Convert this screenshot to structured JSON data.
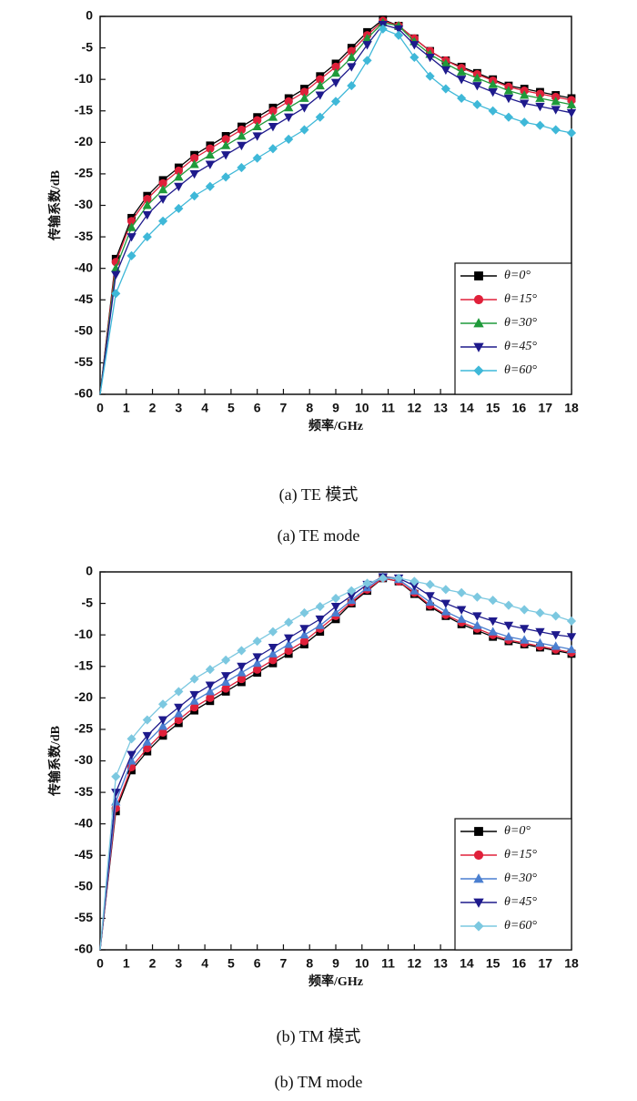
{
  "chart_data": [
    {
      "type": "line",
      "caption": "(a) TE 模式",
      "caption_en": "(a) TE mode",
      "xlabel": "频率/GHz",
      "ylabel": "传输系数/dB",
      "x": [
        0,
        0.6,
        1.2,
        1.8,
        2.4,
        3.0,
        3.6,
        4.2,
        4.8,
        5.4,
        6.0,
        6.6,
        7.2,
        7.8,
        8.4,
        9.0,
        9.6,
        10.2,
        10.8,
        11.4,
        12.0,
        12.6,
        13.2,
        13.8,
        14.4,
        15.0,
        15.6,
        16.2,
        16.8,
        17.4,
        18.0
      ],
      "xlim": [
        0,
        18
      ],
      "xticks": [
        0,
        1,
        2,
        3,
        4,
        5,
        6,
        7,
        8,
        9,
        10,
        11,
        12,
        13,
        14,
        15,
        16,
        17,
        18
      ],
      "ylim": [
        -60,
        0
      ],
      "yticks": [
        0,
        -5,
        -10,
        -15,
        -20,
        -25,
        -30,
        -35,
        -40,
        -45,
        -50,
        -55,
        -60
      ],
      "legend": "lower right",
      "series": [
        {
          "name": "θ=0°",
          "color": "#000000",
          "marker": "square",
          "values": [
            -60,
            -38.5,
            -32,
            -28.5,
            -26,
            -24,
            -22,
            -20.5,
            -19,
            -17.5,
            -16,
            -14.5,
            -13,
            -11.5,
            -9.5,
            -7.5,
            -5,
            -2.5,
            -0.5,
            -1.5,
            -3.5,
            -5.5,
            -7,
            -8,
            -9,
            -10,
            -11,
            -11.5,
            -12,
            -12.5,
            -13
          ]
        },
        {
          "name": "θ=15°",
          "color": "#e0203a",
          "marker": "circle",
          "values": [
            -60,
            -39,
            -32.5,
            -29,
            -26.5,
            -24.5,
            -22.5,
            -21,
            -19.5,
            -18,
            -16.5,
            -15,
            -13.5,
            -12,
            -10,
            -8,
            -5.5,
            -3,
            -0.7,
            -1.5,
            -3.5,
            -5.5,
            -7,
            -8.2,
            -9.2,
            -10.2,
            -11.2,
            -11.8,
            -12.3,
            -12.8,
            -13.3
          ]
        },
        {
          "name": "θ=30°",
          "color": "#1f9a3a",
          "marker": "triangle-up",
          "values": [
            -60,
            -40,
            -33.5,
            -30,
            -27.5,
            -25.5,
            -23.5,
            -22,
            -20.5,
            -19,
            -17.5,
            -16,
            -14.5,
            -13,
            -11,
            -9,
            -6.5,
            -3.5,
            -1,
            -1.5,
            -4,
            -6,
            -7.5,
            -8.8,
            -9.8,
            -10.8,
            -11.8,
            -12.5,
            -13,
            -13.5,
            -14
          ]
        },
        {
          "name": "θ=45°",
          "color": "#1e1a8c",
          "marker": "triangle-down",
          "values": [
            -60,
            -41,
            -35,
            -31.5,
            -29,
            -27,
            -25,
            -23.5,
            -22,
            -20.5,
            -19,
            -17.5,
            -16,
            -14.5,
            -12.5,
            -10.5,
            -8,
            -4.5,
            -1.3,
            -2,
            -4.5,
            -6.5,
            -8.5,
            -10,
            -11,
            -12,
            -13,
            -13.8,
            -14.3,
            -14.8,
            -15.3
          ]
        },
        {
          "name": "θ=60°",
          "color": "#3fb8d8",
          "marker": "diamond",
          "values": [
            -60,
            -44,
            -38,
            -35,
            -32.5,
            -30.5,
            -28.5,
            -27,
            -25.5,
            -24,
            -22.5,
            -21,
            -19.5,
            -18,
            -16,
            -13.5,
            -11,
            -7,
            -2,
            -3,
            -6.5,
            -9.5,
            -11.5,
            -13,
            -14,
            -15,
            -16,
            -16.8,
            -17.3,
            -18,
            -18.5
          ]
        }
      ]
    },
    {
      "type": "line",
      "caption": "(b) TM 模式",
      "caption_en": "(b) TM mode",
      "xlabel": "频率/GHz",
      "ylabel": "传输系数/dB",
      "x": [
        0,
        0.6,
        1.2,
        1.8,
        2.4,
        3.0,
        3.6,
        4.2,
        4.8,
        5.4,
        6.0,
        6.6,
        7.2,
        7.8,
        8.4,
        9.0,
        9.6,
        10.2,
        10.8,
        11.4,
        12.0,
        12.6,
        13.2,
        13.8,
        14.4,
        15.0,
        15.6,
        16.2,
        16.8,
        17.4,
        18.0
      ],
      "xlim": [
        0,
        18
      ],
      "xticks": [
        0,
        1,
        2,
        3,
        4,
        5,
        6,
        7,
        8,
        9,
        10,
        11,
        12,
        13,
        14,
        15,
        16,
        17,
        18
      ],
      "ylim": [
        -60,
        0
      ],
      "yticks": [
        0,
        -5,
        -10,
        -15,
        -20,
        -25,
        -30,
        -35,
        -40,
        -45,
        -50,
        -55,
        -60
      ],
      "legend": "lower right",
      "series": [
        {
          "name": "θ=0°",
          "color": "#000000",
          "marker": "square",
          "values": [
            -60,
            -38,
            -31.5,
            -28.5,
            -26,
            -24,
            -22,
            -20.5,
            -19,
            -17.5,
            -16,
            -14.5,
            -13,
            -11.5,
            -9.5,
            -7.5,
            -5,
            -3,
            -1,
            -1.5,
            -3.5,
            -5.5,
            -7,
            -8.3,
            -9.3,
            -10.3,
            -11,
            -11.5,
            -12,
            -12.5,
            -13
          ]
        },
        {
          "name": "θ=15°",
          "color": "#e0203a",
          "marker": "circle",
          "values": [
            -60,
            -37.5,
            -31,
            -28,
            -25.5,
            -23.5,
            -21.5,
            -20,
            -18.5,
            -17,
            -15.5,
            -14,
            -12.5,
            -11,
            -9,
            -7,
            -4.8,
            -2.8,
            -1,
            -1.5,
            -3.3,
            -5.3,
            -6.8,
            -8,
            -9,
            -10,
            -10.8,
            -11.3,
            -11.8,
            -12.3,
            -12.8
          ]
        },
        {
          "name": "θ=30°",
          "color": "#4a7fd0",
          "marker": "triangle-up",
          "values": [
            -60,
            -36.5,
            -30,
            -27,
            -24.5,
            -22.5,
            -20.5,
            -19,
            -17.5,
            -16,
            -14.5,
            -13,
            -11.5,
            -10,
            -8.5,
            -6.5,
            -4.5,
            -2.5,
            -0.8,
            -1.2,
            -3,
            -4.8,
            -6.3,
            -7.5,
            -8.5,
            -9.5,
            -10.3,
            -10.8,
            -11.3,
            -11.8,
            -12.3
          ]
        },
        {
          "name": "θ=45°",
          "color": "#1e1a8c",
          "marker": "triangle-down",
          "values": [
            -60,
            -35,
            -29,
            -26,
            -23.5,
            -21.5,
            -19.5,
            -18,
            -16.5,
            -15,
            -13.5,
            -12,
            -10.5,
            -9,
            -7.5,
            -5.5,
            -3.8,
            -2,
            -0.8,
            -1,
            -2.2,
            -3.8,
            -5,
            -6,
            -7,
            -7.8,
            -8.5,
            -9,
            -9.5,
            -10,
            -10.3
          ]
        },
        {
          "name": "θ=60°",
          "color": "#7cc8e0",
          "marker": "diamond",
          "values": [
            -60,
            -32.5,
            -26.5,
            -23.5,
            -21,
            -19,
            -17,
            -15.5,
            -14,
            -12.5,
            -11,
            -9.5,
            -8,
            -6.5,
            -5.5,
            -4.2,
            -3,
            -1.8,
            -1,
            -1,
            -1.5,
            -2,
            -2.8,
            -3.3,
            -4,
            -4.5,
            -5.3,
            -6,
            -6.5,
            -7,
            -7.8
          ]
        }
      ]
    }
  ]
}
